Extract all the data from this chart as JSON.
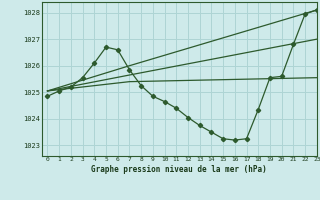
{
  "title": "Graphe pression niveau de la mer (hPa)",
  "background_color": "#ceeaea",
  "grid_color": "#aed4d4",
  "line_color": "#2d5a2d",
  "ylim": [
    1022.6,
    1028.4
  ],
  "xlim": [
    -0.5,
    23
  ],
  "yticks": [
    1023,
    1024,
    1025,
    1026,
    1027,
    1028
  ],
  "xticks": [
    0,
    1,
    2,
    3,
    4,
    5,
    6,
    7,
    8,
    9,
    10,
    11,
    12,
    13,
    14,
    15,
    16,
    17,
    18,
    19,
    20,
    21,
    22,
    23
  ],
  "series": [
    {
      "x": [
        0,
        1,
        2,
        3,
        4,
        5,
        6,
        7,
        8,
        9,
        10,
        11,
        12,
        13,
        14,
        15,
        16,
        17,
        18,
        19,
        20,
        21,
        22,
        23
      ],
      "y": [
        1024.85,
        1025.05,
        1025.2,
        1025.55,
        1026.1,
        1026.7,
        1026.6,
        1025.85,
        1025.25,
        1024.85,
        1024.65,
        1024.4,
        1024.05,
        1023.75,
        1023.5,
        1023.25,
        1023.2,
        1023.25,
        1024.35,
        1025.55,
        1025.6,
        1026.8,
        1027.95,
        1028.1
      ],
      "with_markers": true
    },
    {
      "x": [
        0,
        7,
        23
      ],
      "y": [
        1025.05,
        1026.0,
        1028.1
      ],
      "with_markers": false
    },
    {
      "x": [
        0,
        7,
        23
      ],
      "y": [
        1025.05,
        1025.65,
        1027.0
      ],
      "with_markers": false
    },
    {
      "x": [
        0,
        7,
        23
      ],
      "y": [
        1025.05,
        1025.4,
        1025.55
      ],
      "with_markers": false
    }
  ]
}
